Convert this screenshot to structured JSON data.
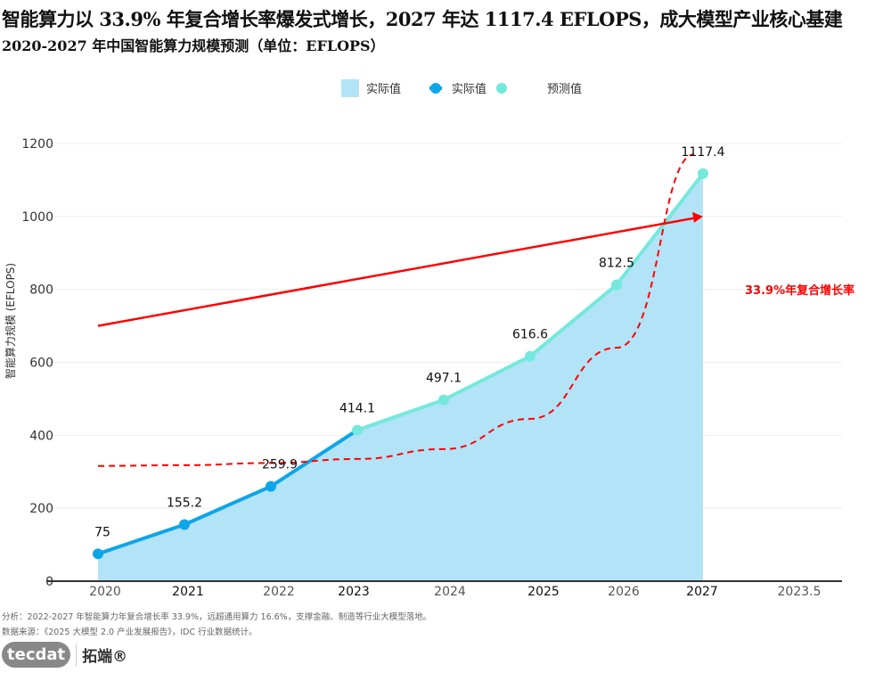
{
  "title": "智能算力以 33.9% 年复合增长率爆发式增长，2027 年达 1117.4 EFLOPS，成大模型产业核心基建",
  "subtitle": "2020-2027 年中国智能算力规模预测（单位：EFLOPS）",
  "notes": {
    "analysis": "分析：2022-2027 年智能算力年复合增长率 33.9%，远超通用算力 16.6%，支撑金融、制造等行业大模型落地。",
    "source": "数据来源：《2025 大模型 2.0 产业发展报告》，IDC 行业数据统计。"
  },
  "logo": {
    "text": "tecdat",
    "cn": "拓端®"
  },
  "chart_data": {
    "type": "area+line",
    "ylabel": "智能算力规模 (EFLOPS)",
    "ylim": [
      0,
      1200
    ],
    "yticks": [
      0,
      200,
      400,
      600,
      800,
      1000,
      1200
    ],
    "grid": true,
    "legend_position": "top",
    "legend": [
      {
        "label": "实际值",
        "kind": "area"
      },
      {
        "label": "实际值",
        "kind": "line"
      },
      {
        "label": "预测值",
        "kind": "line"
      }
    ],
    "xtick_labels": [
      "2020",
      "2021",
      "2022",
      "2023",
      "2024",
      "2025",
      "2026",
      "2027",
      "2023.5"
    ],
    "x": [
      2020,
      2021,
      2022,
      2023,
      2024,
      2025,
      2026,
      2027
    ],
    "values": [
      75,
      155.2,
      259.9,
      414.1,
      497.1,
      616.6,
      812.5,
      1117.4
    ],
    "data_labels": [
      "75",
      "155.2",
      "259.9",
      "414.1",
      "497.1",
      "616.6",
      "812.5",
      "1117.4"
    ],
    "actual_years": [
      2020,
      2021,
      2022,
      2023
    ],
    "forecast_years": [
      2023,
      2024,
      2025,
      2026,
      2027
    ],
    "trend_arrow": {
      "from": [
        2020,
        700
      ],
      "to": [
        2027,
        1000
      ]
    },
    "cagr_curve": {
      "x": [
        2020,
        2021,
        2022,
        2023,
        2024,
        2025,
        2026,
        2027
      ],
      "y": [
        316,
        318,
        324,
        335,
        362,
        445,
        640,
        1170
      ]
    },
    "annotation": "33.9%年复合增长率",
    "colors": {
      "area": "#b3e3f7",
      "actual": "#0ea5e9",
      "forecast": "#74e8dc",
      "trend": "#ff0000"
    }
  }
}
